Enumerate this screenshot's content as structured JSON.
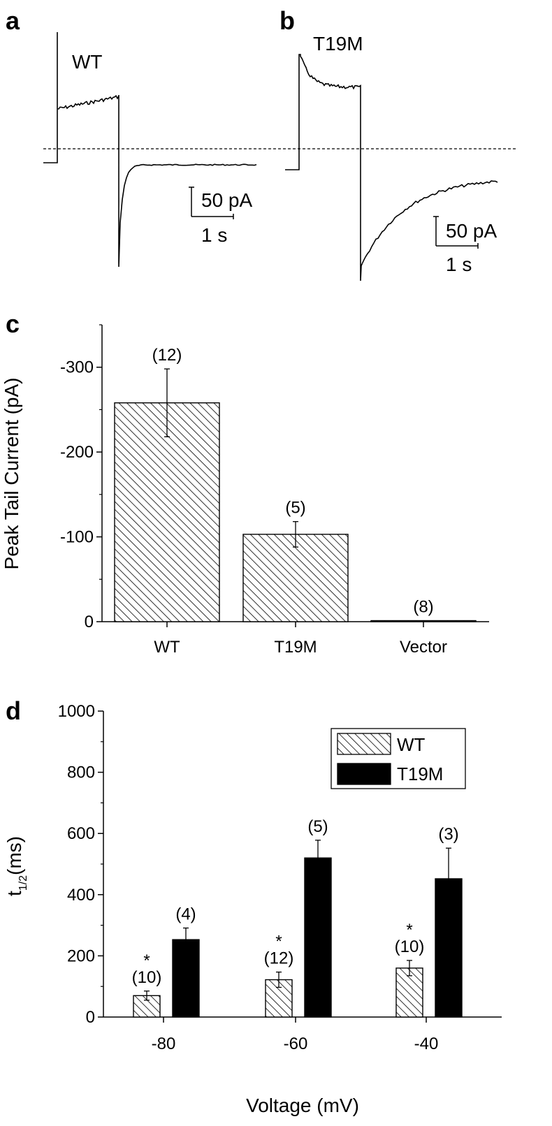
{
  "panels": {
    "a": "a",
    "b": "b",
    "c": "c",
    "d": "d"
  },
  "traces": {
    "a_label": "WT",
    "b_label": "T19M",
    "scale_a_current": "50 pA",
    "scale_a_time": "1 s",
    "scale_b_current": "50 pA",
    "scale_b_time": "1 s"
  },
  "colors": {
    "wt_fill": "hatched",
    "t19m_fill": "#000000"
  },
  "chart_data": [
    {
      "type": "bar",
      "panel": "c",
      "categories": [
        "WT",
        "T19M",
        "Vector"
      ],
      "values": [
        -258,
        -103,
        -1
      ],
      "errors": [
        40,
        15,
        0
      ],
      "counts": [
        "(12)",
        "(5)",
        "(8)"
      ],
      "ylabel": "Peak Tail Current (pA)",
      "ylim": [
        0,
        -350
      ],
      "yticks": [
        0,
        -100,
        -200,
        -300
      ],
      "ytick_labels": [
        "0",
        "-100",
        "-200",
        "-300"
      ]
    },
    {
      "type": "bar",
      "panel": "d",
      "categories": [
        "-80",
        "-60",
        "-40"
      ],
      "xlabel": "Voltage (mV)",
      "ylabel_main": "t",
      "ylabel_sub": "1/2",
      "ylabel_unit": "(ms)",
      "ylim": [
        0,
        1000
      ],
      "yticks": [
        0,
        200,
        400,
        600,
        800,
        1000
      ],
      "ytick_labels": [
        "0",
        "200",
        "400",
        "600",
        "800",
        "1000"
      ],
      "legend_position": "top-right",
      "series": [
        {
          "name": "WT",
          "values": [
            70,
            122,
            160
          ],
          "errors": [
            15,
            25,
            25
          ],
          "counts": [
            "(10)",
            "(12)",
            "(10)"
          ],
          "stars": [
            "*",
            "*",
            "*"
          ]
        },
        {
          "name": "T19M",
          "values": [
            253,
            520,
            452
          ],
          "errors": [
            38,
            58,
            100
          ],
          "counts": [
            "(4)",
            "(5)",
            "(3)"
          ]
        }
      ]
    }
  ]
}
